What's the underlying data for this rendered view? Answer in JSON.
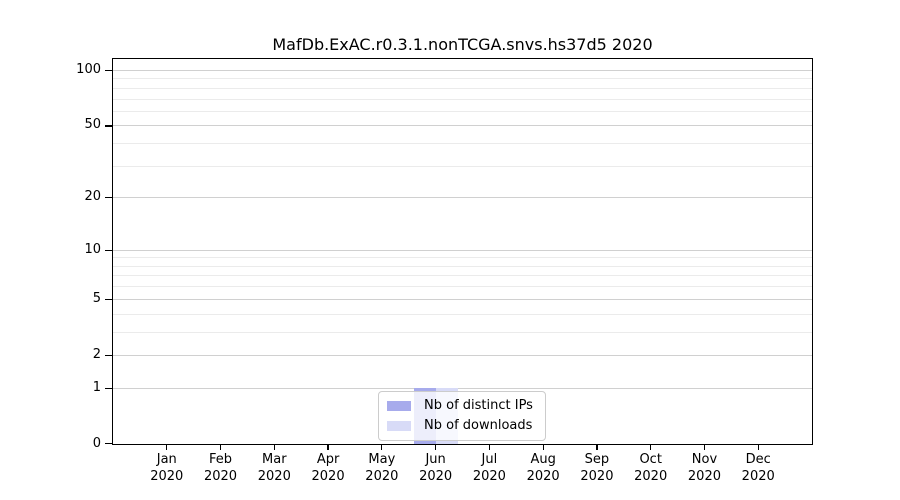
{
  "title": "MafDb.ExAC.r0.3.1.nonTCGA.snvs.hs37d5 2020",
  "chart_data": {
    "type": "bar",
    "title": "MafDb.ExAC.r0.3.1.nonTCGA.snvs.hs37d5 2020",
    "categories": [
      "Jan 2020",
      "Feb 2020",
      "Mar 2020",
      "Apr 2020",
      "May 2020",
      "Jun 2020",
      "Jul 2020",
      "Aug 2020",
      "Sep 2020",
      "Oct 2020",
      "Nov 2020",
      "Dec 2020"
    ],
    "series": [
      {
        "name": "Nb of distinct IPs",
        "color": "#a7abec",
        "values": [
          0,
          0,
          0,
          0,
          0,
          1,
          0,
          0,
          0,
          0,
          0,
          0
        ]
      },
      {
        "name": "Nb of downloads",
        "color": "#d8dbf7",
        "values": [
          0,
          0,
          0,
          0,
          0,
          1,
          0,
          0,
          0,
          0,
          0,
          0
        ]
      }
    ],
    "xlabel": "",
    "ylabel": "",
    "yscale": "log1p",
    "ylim": [
      0,
      115
    ],
    "yticks": [
      0,
      1,
      2,
      5,
      10,
      20,
      50,
      100
    ],
    "minor_yticks": [
      3,
      4,
      6,
      7,
      8,
      9,
      30,
      40,
      60,
      70,
      80,
      90
    ],
    "grid": true,
    "legend_position": "lower center inside plot"
  },
  "colors": {
    "major_grid": "#d0d0d0",
    "minor_grid": "#ebebeb",
    "axis": "#000000",
    "legend_border": "#cccccc"
  }
}
